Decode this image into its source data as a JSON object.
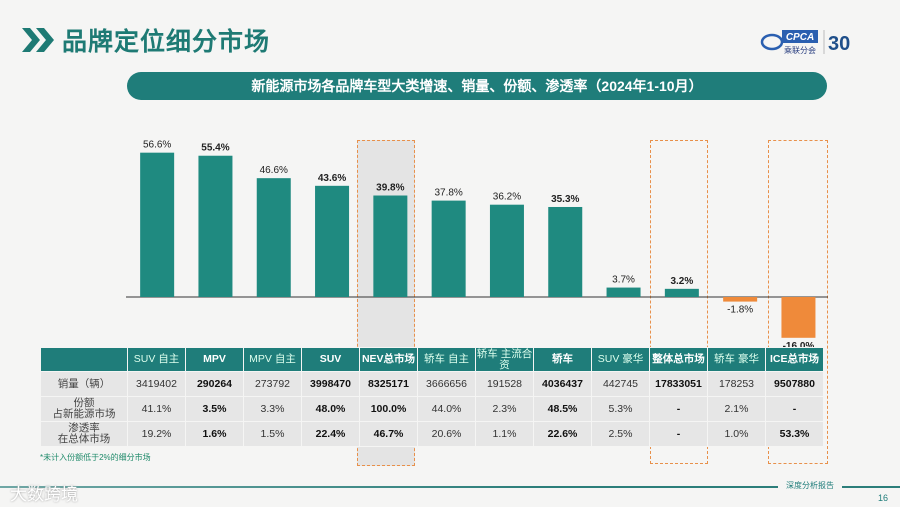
{
  "header": {
    "title": "品牌定位细分市场",
    "logo_text": "CPCA",
    "logo_sub": "乘联分会",
    "logo_anniversary": "30"
  },
  "banner": {
    "text": "新能源市场各品牌车型大类增速、销量、份额、渗透率（2024年1-10月）"
  },
  "chart_data": {
    "type": "bar",
    "categories": [
      "SUV 自主",
      "MPV",
      "MPV 自主",
      "SUV",
      "NEV总市场",
      "轿车 自主",
      "轿车 主流合资",
      "轿车",
      "SUV 豪华",
      "整体总市场",
      "轿车 豪华",
      "ICE总市场"
    ],
    "values": [
      56.6,
      55.4,
      46.6,
      43.6,
      39.8,
      37.8,
      36.2,
      35.3,
      3.7,
      3.2,
      -1.8,
      -16.0
    ],
    "labels": [
      "56.6%",
      "55.4%",
      "46.6%",
      "43.6%",
      "39.8%",
      "37.8%",
      "36.2%",
      "35.3%",
      "3.7%",
      "3.2%",
      "-1.8%",
      "-16.0%"
    ],
    "bold": [
      false,
      true,
      false,
      true,
      true,
      false,
      false,
      true,
      false,
      true,
      false,
      true
    ],
    "colors": {
      "positive": "#1f8a80",
      "negative": "#ef8a3a",
      "highlight_box": "#e8904a"
    },
    "unit": "%"
  },
  "table": {
    "row_labels": [
      "销量（辆）",
      "份额\n占新能源市场",
      "渗透率\n在总体市场"
    ],
    "rows": [
      [
        "3419402",
        "290264",
        "273792",
        "3998470",
        "8325171",
        "3666656",
        "191528",
        "4036437",
        "442745",
        "17833051",
        "178253",
        "9507880"
      ],
      [
        "41.1%",
        "3.5%",
        "3.3%",
        "48.0%",
        "100.0%",
        "44.0%",
        "2.3%",
        "48.5%",
        "5.3%",
        "-",
        "2.1%",
        "-"
      ],
      [
        "19.2%",
        "1.6%",
        "1.5%",
        "22.4%",
        "46.7%",
        "20.6%",
        "1.1%",
        "22.6%",
        "2.5%",
        "-",
        "1.0%",
        "53.3%"
      ]
    ]
  },
  "note": "*未计入份额低于2%的细分市场",
  "footer": {
    "text": "深度分析报告",
    "page": "16",
    "watermark": "大数跨境"
  }
}
